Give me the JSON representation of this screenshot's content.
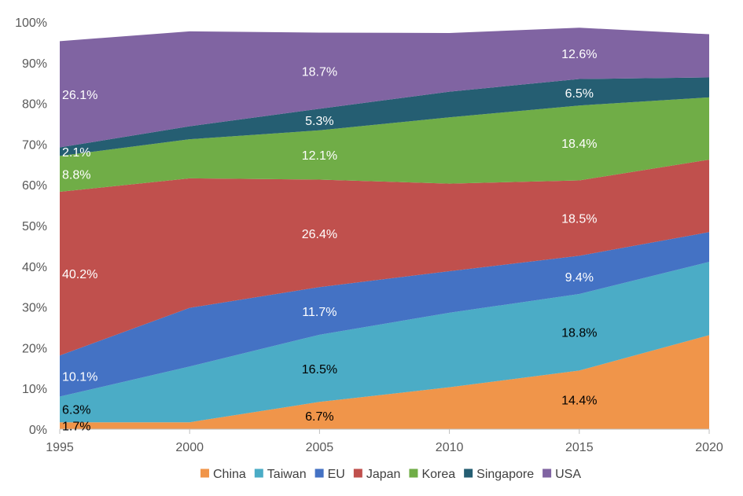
{
  "chart_data": {
    "type": "area",
    "stacked": true,
    "x": [
      1995,
      2000,
      2005,
      2010,
      2015,
      2020
    ],
    "x_tick_labels": [
      "1995",
      "2000",
      "2005",
      "2010",
      "2015",
      "2020"
    ],
    "ylim": [
      0,
      100
    ],
    "y_tick_labels": [
      "0%",
      "10%",
      "20%",
      "30%",
      "40%",
      "50%",
      "60%",
      "70%",
      "80%",
      "90%",
      "100%"
    ],
    "grid": false,
    "legend_position": "bottom",
    "series": [
      {
        "name": "China",
        "color": "#f0954a",
        "values": [
          1.7,
          1.7,
          6.7,
          10.3,
          14.4,
          23.1
        ]
      },
      {
        "name": "Taiwan",
        "color": "#4bacc6",
        "values": [
          6.3,
          13.7,
          16.5,
          18.3,
          18.8,
          18.0
        ]
      },
      {
        "name": "EU",
        "color": "#4472c4",
        "values": [
          10.1,
          14.4,
          11.7,
          10.2,
          9.4,
          7.3
        ]
      },
      {
        "name": "Japan",
        "color": "#c0504d",
        "values": [
          40.2,
          31.8,
          26.4,
          21.5,
          18.5,
          17.8
        ]
      },
      {
        "name": "Korea",
        "color": "#70ad47",
        "values": [
          8.8,
          9.6,
          12.1,
          16.3,
          18.4,
          15.3
        ]
      },
      {
        "name": "Singapore",
        "color": "#255e72",
        "values": [
          2.1,
          3.2,
          5.3,
          6.3,
          6.5,
          4.9
        ]
      },
      {
        "name": "USA",
        "color": "#8064a2",
        "values": [
          26.1,
          23.3,
          18.7,
          14.4,
          12.6,
          10.6
        ]
      }
    ],
    "data_labels": [
      {
        "text": "1.7%",
        "series": "China",
        "x": 1995,
        "y": 0.9,
        "color": "#000000",
        "anchor": "start"
      },
      {
        "text": "6.7%",
        "series": "China",
        "x": 2005,
        "y": 3.3,
        "color": "#000000",
        "anchor": "middle"
      },
      {
        "text": "14.4%",
        "series": "China",
        "x": 2015,
        "y": 7.2,
        "color": "#000000",
        "anchor": "middle"
      },
      {
        "text": "6.3%",
        "series": "Taiwan",
        "x": 1995,
        "y": 4.9,
        "color": "#000000",
        "anchor": "start"
      },
      {
        "text": "16.5%",
        "series": "Taiwan",
        "x": 2005,
        "y": 14.9,
        "color": "#000000",
        "anchor": "middle"
      },
      {
        "text": "18.8%",
        "series": "Taiwan",
        "x": 2015,
        "y": 23.8,
        "color": "#000000",
        "anchor": "middle"
      },
      {
        "text": "10.1%",
        "series": "EU",
        "x": 1995,
        "y": 13.0,
        "color": "#ffffff",
        "anchor": "start"
      },
      {
        "text": "11.7%",
        "series": "EU",
        "x": 2005,
        "y": 29.0,
        "color": "#ffffff",
        "anchor": "middle"
      },
      {
        "text": "9.4%",
        "series": "EU",
        "x": 2015,
        "y": 37.5,
        "color": "#ffffff",
        "anchor": "middle"
      },
      {
        "text": "40.2%",
        "series": "Japan",
        "x": 1995,
        "y": 38.2,
        "color": "#ffffff",
        "anchor": "start"
      },
      {
        "text": "26.4%",
        "series": "Japan",
        "x": 2005,
        "y": 48.1,
        "color": "#ffffff",
        "anchor": "middle"
      },
      {
        "text": "18.5%",
        "series": "Japan",
        "x": 2015,
        "y": 51.8,
        "color": "#ffffff",
        "anchor": "middle"
      },
      {
        "text": "8.8%",
        "series": "Korea",
        "x": 1995,
        "y": 62.6,
        "color": "#ffffff",
        "anchor": "start"
      },
      {
        "text": "12.1%",
        "series": "Korea",
        "x": 2005,
        "y": 67.4,
        "color": "#ffffff",
        "anchor": "middle"
      },
      {
        "text": "18.4%",
        "series": "Korea",
        "x": 2015,
        "y": 70.3,
        "color": "#ffffff",
        "anchor": "middle"
      },
      {
        "text": "2.1%",
        "series": "Singapore",
        "x": 1995,
        "y": 68.1,
        "color": "#ffffff",
        "anchor": "start"
      },
      {
        "text": "5.3%",
        "series": "Singapore",
        "x": 2005,
        "y": 75.9,
        "color": "#ffffff",
        "anchor": "middle"
      },
      {
        "text": "6.5%",
        "series": "Singapore",
        "x": 2015,
        "y": 82.6,
        "color": "#ffffff",
        "anchor": "middle"
      },
      {
        "text": "26.1%",
        "series": "USA",
        "x": 1995,
        "y": 82.2,
        "color": "#ffffff",
        "anchor": "start"
      },
      {
        "text": "18.7%",
        "series": "USA",
        "x": 2005,
        "y": 87.9,
        "color": "#ffffff",
        "anchor": "middle"
      },
      {
        "text": "12.6%",
        "series": "USA",
        "x": 2015,
        "y": 92.3,
        "color": "#ffffff",
        "anchor": "middle"
      }
    ]
  }
}
